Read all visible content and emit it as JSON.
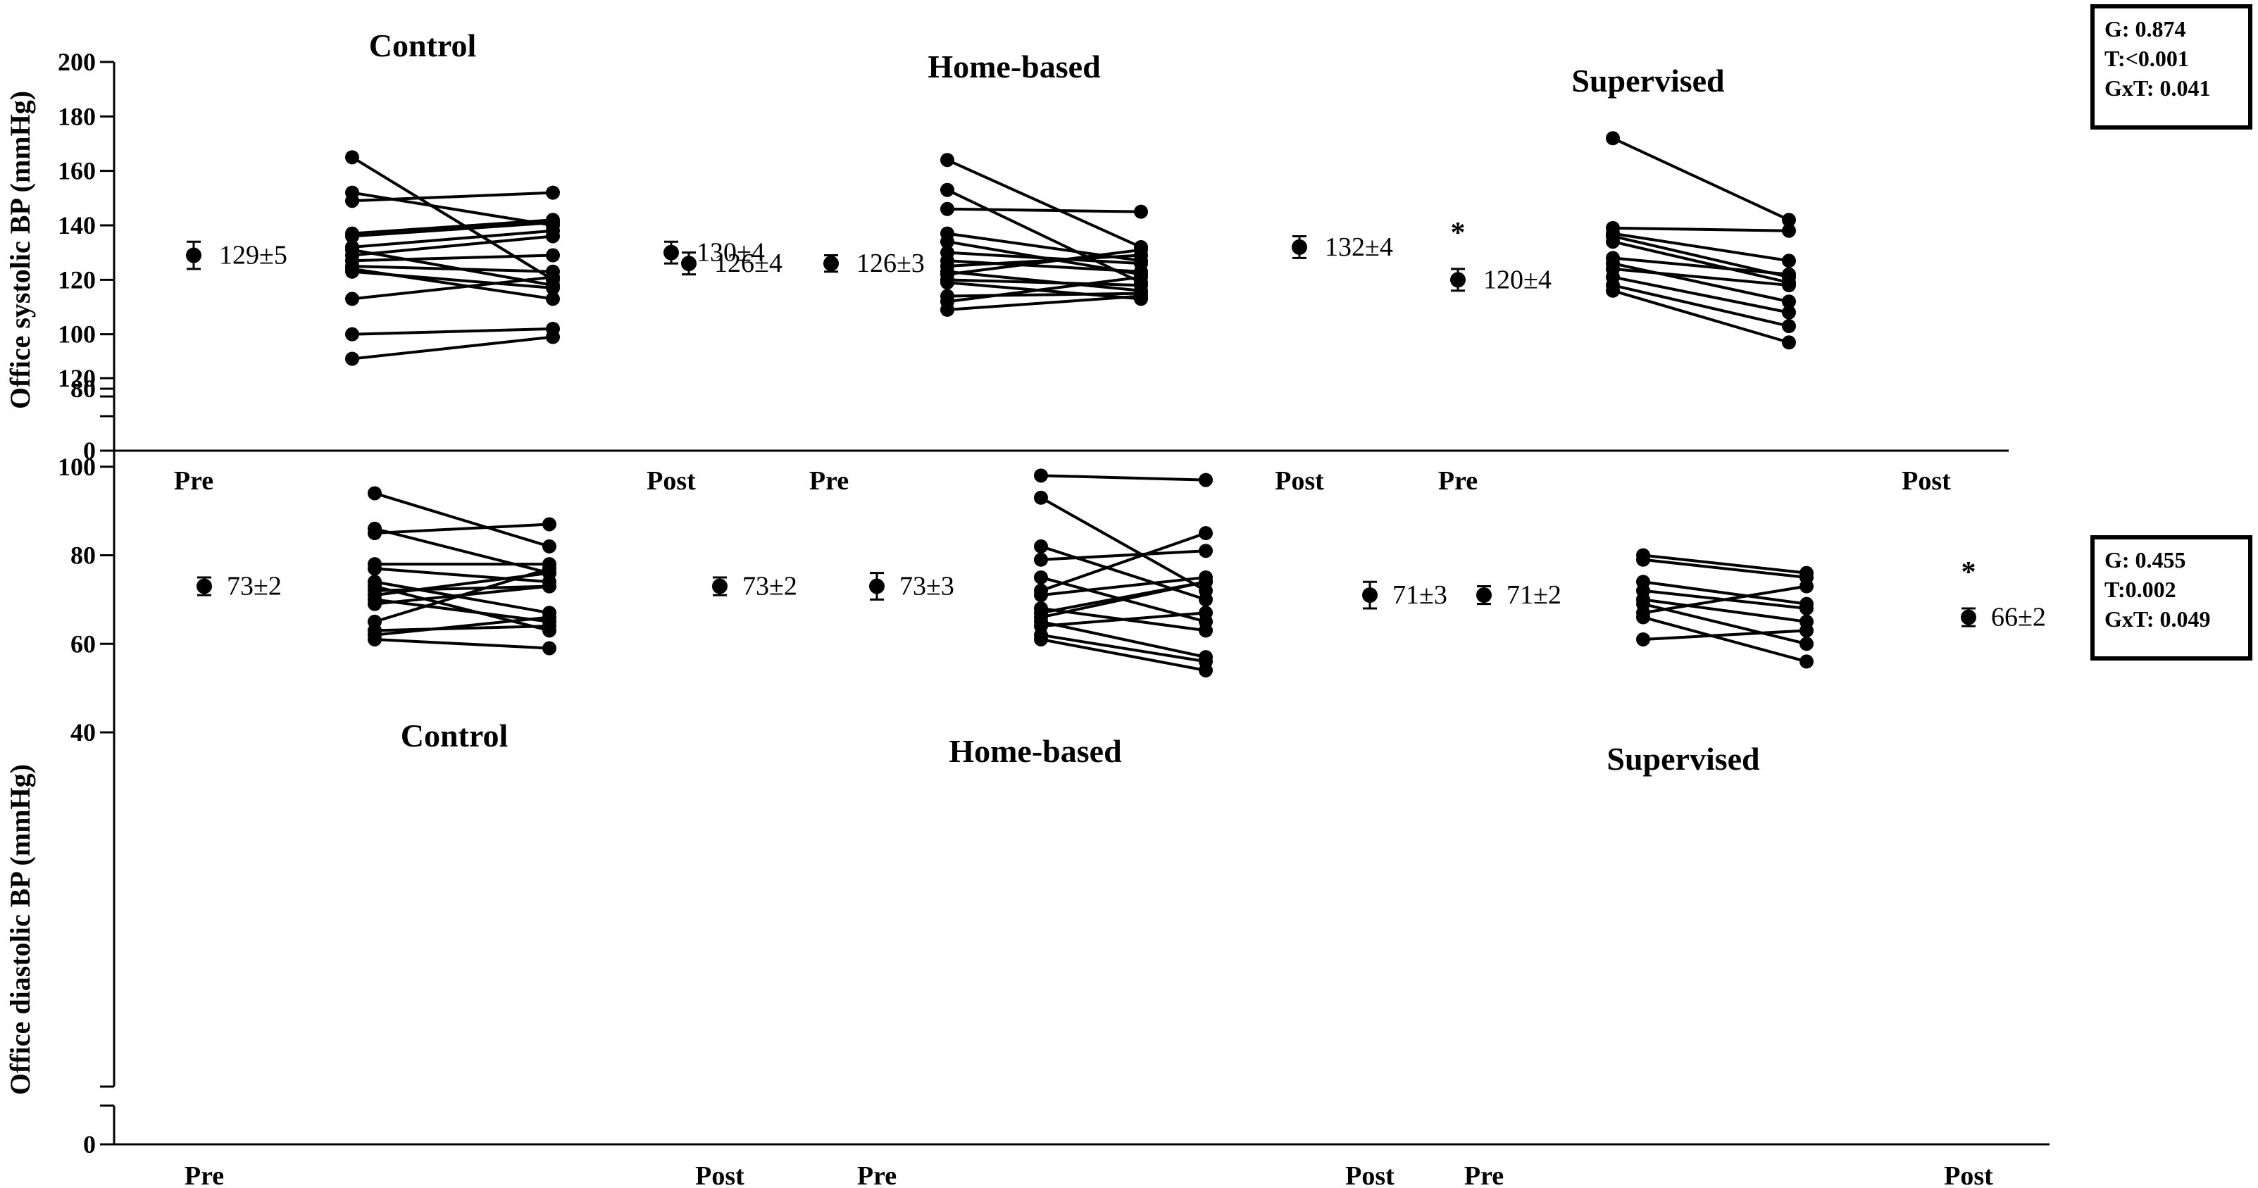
{
  "chart_data": [
    {
      "type": "scatter",
      "ylabel": "Office systolic BP (mmHg)",
      "yticks": [
        0,
        80,
        100,
        120,
        140,
        160,
        180,
        200
      ],
      "ylim": [
        80,
        200
      ],
      "axis_break": true,
      "x_tick_labels": [
        "Pre",
        "Post",
        "Pre",
        "Post",
        "Pre",
        "Post"
      ],
      "stats": [
        "G: 0.874",
        "T:<0.001",
        "GxT: 0.041"
      ],
      "groups": [
        {
          "name": "Control",
          "pre_mean": 129,
          "pre_sem": 5,
          "pre_label": "129±5",
          "post_mean": 126,
          "post_sem": 4,
          "post_label": "126±4",
          "significance": "",
          "individuals": [
            [
              165,
              120
            ],
            [
              152,
              140
            ],
            [
              149,
              152
            ],
            [
              137,
              142
            ],
            [
              136,
              141
            ],
            [
              132,
              138
            ],
            [
              131,
              118
            ],
            [
              129,
              136
            ],
            [
              127,
              129
            ],
            [
              125,
              123
            ],
            [
              124,
              113
            ],
            [
              123,
              117
            ],
            [
              113,
              121
            ],
            [
              100,
              102
            ],
            [
              91,
              99
            ]
          ]
        },
        {
          "name": "Home-based",
          "pre_mean": 130,
          "pre_sem": 4,
          "pre_label": "130±4",
          "post_mean": 126,
          "post_sem": 3,
          "post_label": "126±3",
          "significance": "",
          "individuals": [
            [
              164,
              132
            ],
            [
              153,
              119
            ],
            [
              146,
              145
            ],
            [
              137,
              127
            ],
            [
              134,
              122
            ],
            [
              130,
              126
            ],
            [
              127,
              123
            ],
            [
              125,
              129
            ],
            [
              123,
              116
            ],
            [
              122,
              131
            ],
            [
              120,
              118
            ],
            [
              119,
              113
            ],
            [
              114,
              115
            ],
            [
              112,
              121
            ],
            [
              109,
              114
            ]
          ]
        },
        {
          "name": "Supervised",
          "pre_mean": 132,
          "pre_sem": 4,
          "pre_label": "132±4",
          "post_mean": 120,
          "post_sem": 4,
          "post_label": "120±4",
          "significance": "*",
          "individuals": [
            [
              172,
              142
            ],
            [
              139,
              138
            ],
            [
              137,
              127
            ],
            [
              136,
              121
            ],
            [
              134,
              119
            ],
            [
              128,
              122
            ],
            [
              126,
              112
            ],
            [
              124,
              118
            ],
            [
              121,
              108
            ],
            [
              118,
              103
            ],
            [
              116,
              97
            ]
          ]
        }
      ]
    },
    {
      "type": "scatter",
      "ylabel": "Office diastolic BP (mmHg)",
      "yticks": [
        0,
        40,
        60,
        80,
        100,
        120
      ],
      "ylim": [
        40,
        120
      ],
      "axis_break": true,
      "x_tick_labels": [
        "Pre",
        "Post",
        "Pre",
        "Post",
        "Pre",
        "Post"
      ],
      "stats": [
        "G: 0.455",
        "T:0.002",
        "GxT: 0.049"
      ],
      "groups": [
        {
          "name": "Control",
          "pre_mean": 73,
          "pre_sem": 2,
          "pre_label": "73±2",
          "post_mean": 73,
          "post_sem": 2,
          "post_label": "73±2",
          "significance": "",
          "individuals": [
            [
              94,
              82
            ],
            [
              86,
              76
            ],
            [
              85,
              87
            ],
            [
              78,
              78
            ],
            [
              77,
              74
            ],
            [
              74,
              67
            ],
            [
              73,
              63
            ],
            [
              72,
              73
            ],
            [
              71,
              76
            ],
            [
              70,
              65
            ],
            [
              69,
              73
            ],
            [
              65,
              77
            ],
            [
              63,
              64
            ],
            [
              62,
              66
            ],
            [
              61,
              59
            ]
          ]
        },
        {
          "name": "Home-based",
          "pre_mean": 73,
          "pre_sem": 3,
          "pre_label": "73±3",
          "post_mean": 71,
          "post_sem": 3,
          "post_label": "71±3",
          "significance": "",
          "individuals": [
            [
              98,
              97
            ],
            [
              93,
              72
            ],
            [
              82,
              70
            ],
            [
              79,
              81
            ],
            [
              75,
              65
            ],
            [
              72,
              85
            ],
            [
              71,
              75
            ],
            [
              68,
              63
            ],
            [
              67,
              74
            ],
            [
              66,
              74
            ],
            [
              65,
              57
            ],
            [
              64,
              67
            ],
            [
              62,
              56
            ],
            [
              61,
              54
            ]
          ]
        },
        {
          "name": "Supervised",
          "pre_mean": 71,
          "pre_sem": 2,
          "pre_label": "71±2",
          "post_mean": 66,
          "post_sem": 2,
          "post_label": "66±2",
          "significance": "*",
          "individuals": [
            [
              80,
              76
            ],
            [
              79,
              75
            ],
            [
              74,
              69
            ],
            [
              72,
              68
            ],
            [
              70,
              65
            ],
            [
              69,
              60
            ],
            [
              67,
              73
            ],
            [
              66,
              56
            ],
            [
              61,
              63
            ]
          ]
        }
      ]
    }
  ]
}
